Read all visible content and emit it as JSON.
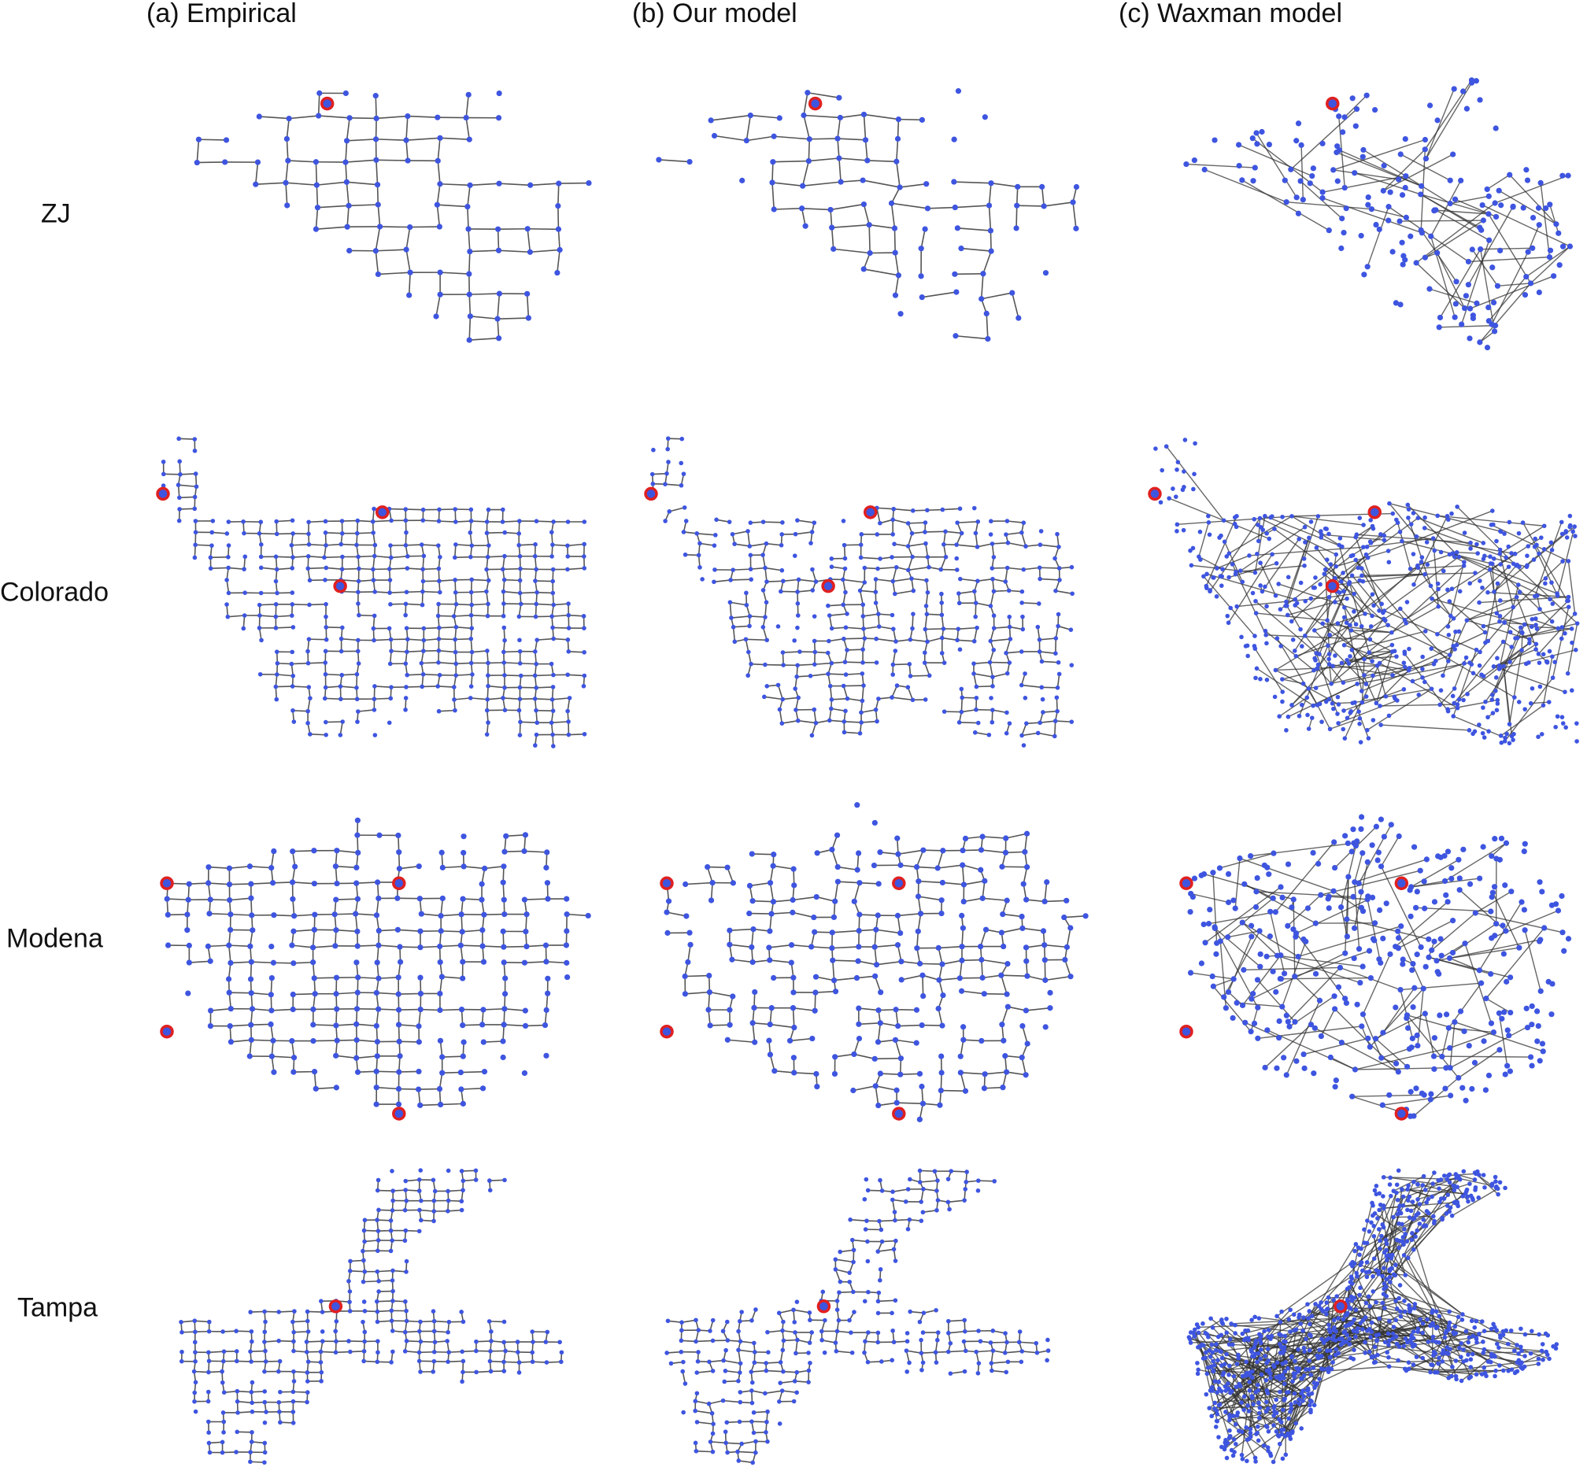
{
  "columns": [
    "(a) Empirical",
    "(b) Our model",
    "(c) Waxman model"
  ],
  "rows": [
    "ZJ",
    "Colorado",
    "Modena",
    "Tampa"
  ],
  "colors": {
    "node": "#3e55e0",
    "edge_empirical": "#555555",
    "edge_waxman": "#333333",
    "source_fill": "#3e55e0",
    "source_ring": "#e02020"
  }
}
